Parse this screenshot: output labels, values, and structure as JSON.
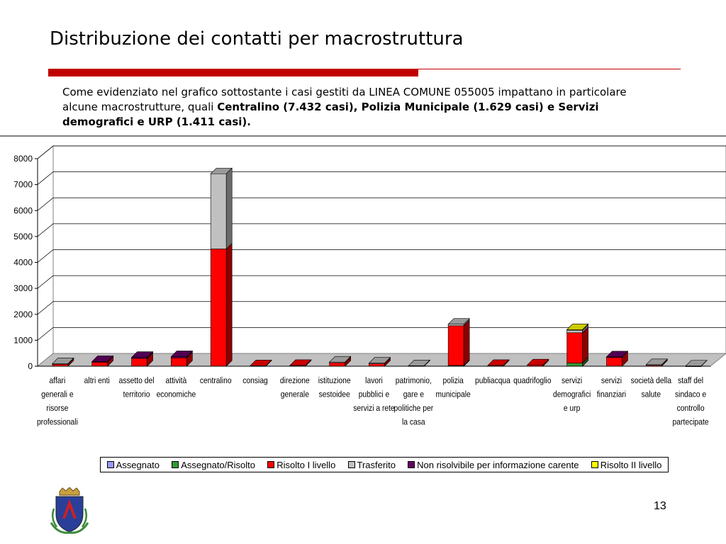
{
  "slide": {
    "title": "Distribuzione dei contatti per macrostruttura",
    "intro_plain": "Come evidenziato nel grafico sottostante i casi gestiti da LINEA COMUNE 055005 impattano in particolare alcune macrostrutture, quali ",
    "intro_bold": "Centralino (7.432 casi), Polizia Municipale (1.629 casi) e Servizi demografici e URP (1.411 casi).",
    "page_number": "13",
    "logo_icon": "municipal-crest-icon"
  },
  "chart_data": {
    "type": "bar",
    "stacked": true,
    "three_d": true,
    "ylim": [
      0,
      8000
    ],
    "yticks": [
      0,
      1000,
      2000,
      3000,
      4000,
      5000,
      6000,
      7000,
      8000
    ],
    "grid": true,
    "legend_position": "bottom",
    "categories": [
      "affari generali e risorse professionali",
      "altri enti",
      "assetto del territorio",
      "attività economiche",
      "centralino",
      "consiag",
      "direzione generale",
      "istituzione sestoidee",
      "lavori pubblici e servizi a rete",
      "patrimonio, gare e politiche per la casa",
      "polizia municipale",
      "publiacqua",
      "quadrifoglio",
      "servizi demografici e urp",
      "servizi finanziari",
      "società della salute",
      "staff del sindaco e controllo partecipate"
    ],
    "category_lines": [
      [
        "affari",
        "generali e",
        "risorse",
        "professionali"
      ],
      [
        "altri enti"
      ],
      [
        "assetto del",
        "territorio"
      ],
      [
        "attività",
        "economiche"
      ],
      [
        "centralino"
      ],
      [
        "consiag"
      ],
      [
        "direzione",
        "generale"
      ],
      [
        "istituzione",
        "sestoidee"
      ],
      [
        "lavori",
        "pubblici e",
        "servizi a rete"
      ],
      [
        "patrimonio,",
        "gare e",
        "politiche per",
        "la casa"
      ],
      [
        "polizia",
        "municipale"
      ],
      [
        "publiacqua"
      ],
      [
        "quadrifoglio"
      ],
      [
        "servizi",
        "demografici",
        "e urp"
      ],
      [
        "servizi",
        "finanziari"
      ],
      [
        "società della",
        "salute"
      ],
      [
        "staff del",
        "sindaco e",
        "controllo",
        "partecipate"
      ]
    ],
    "series": [
      {
        "name": "Assegnato",
        "color": "#9999ff",
        "values": [
          0,
          0,
          0,
          0,
          0,
          0,
          0,
          0,
          0,
          0,
          0,
          0,
          0,
          0,
          0,
          0,
          0
        ]
      },
      {
        "name": "Assegnato/Risolto",
        "color": "#339933",
        "values": [
          0,
          0,
          0,
          0,
          0,
          0,
          0,
          0,
          0,
          0,
          30,
          0,
          0,
          120,
          0,
          0,
          0
        ]
      },
      {
        "name": "Risolto I livello",
        "color": "#ff0000",
        "values": [
          80,
          160,
          300,
          320,
          4520,
          20,
          30,
          140,
          100,
          0,
          1530,
          30,
          50,
          1170,
          350,
          40,
          0
        ]
      },
      {
        "name": "Trasferito",
        "color": "#c0c0c0",
        "values": [
          20,
          0,
          0,
          0,
          2900,
          0,
          0,
          20,
          20,
          20,
          60,
          0,
          0,
          100,
          0,
          20,
          10
        ]
      },
      {
        "name": "Non risolvibile per informazione carente",
        "color": "#660066",
        "values": [
          0,
          20,
          40,
          50,
          0,
          0,
          0,
          0,
          0,
          0,
          0,
          0,
          0,
          0,
          10,
          0,
          0
        ]
      },
      {
        "name": "Risolto II livello",
        "color": "#ffff00",
        "values": [
          0,
          0,
          0,
          0,
          0,
          0,
          0,
          0,
          0,
          0,
          0,
          0,
          0,
          20,
          0,
          0,
          0
        ]
      }
    ]
  }
}
